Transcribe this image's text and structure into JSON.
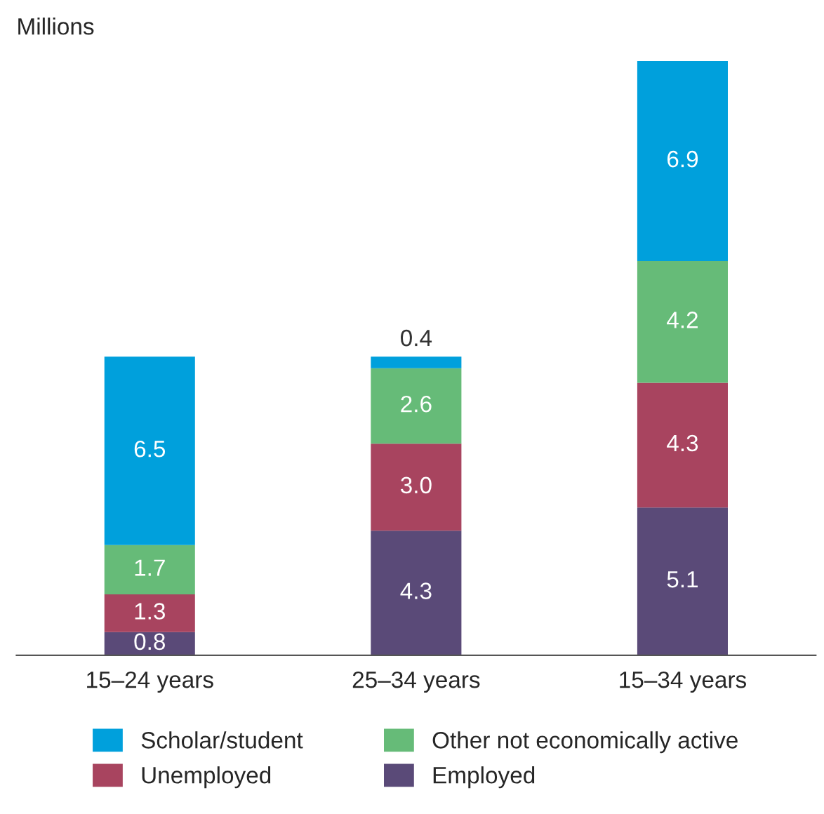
{
  "chart_data": {
    "type": "bar",
    "stacked": true,
    "tick_labels": "x",
    "ylabel": "Millions",
    "categories": [
      "15–24 years",
      "25–34 years",
      "15–34 years"
    ],
    "series": [
      {
        "name": "Employed",
        "color": "#5a4a78",
        "values": [
          0.8,
          4.3,
          5.1
        ],
        "value_labels": [
          "0.8",
          "4.3",
          "5.1"
        ]
      },
      {
        "name": "Unemployed",
        "color": "#a8445f",
        "values": [
          1.3,
          3.0,
          4.3
        ],
        "value_labels": [
          "1.3",
          "3.0",
          "4.3"
        ]
      },
      {
        "name": "Other not economically active",
        "color": "#66bb78",
        "values": [
          1.7,
          2.6,
          4.2
        ],
        "value_labels": [
          "1.7",
          "2.6",
          "4.2"
        ]
      },
      {
        "name": "Scholar/student",
        "color": "#00a0dc",
        "values": [
          6.5,
          0.4,
          6.9
        ],
        "value_labels": [
          "6.5",
          "0.4",
          "6.9"
        ]
      }
    ],
    "legend": "bottom",
    "grid": false
  }
}
